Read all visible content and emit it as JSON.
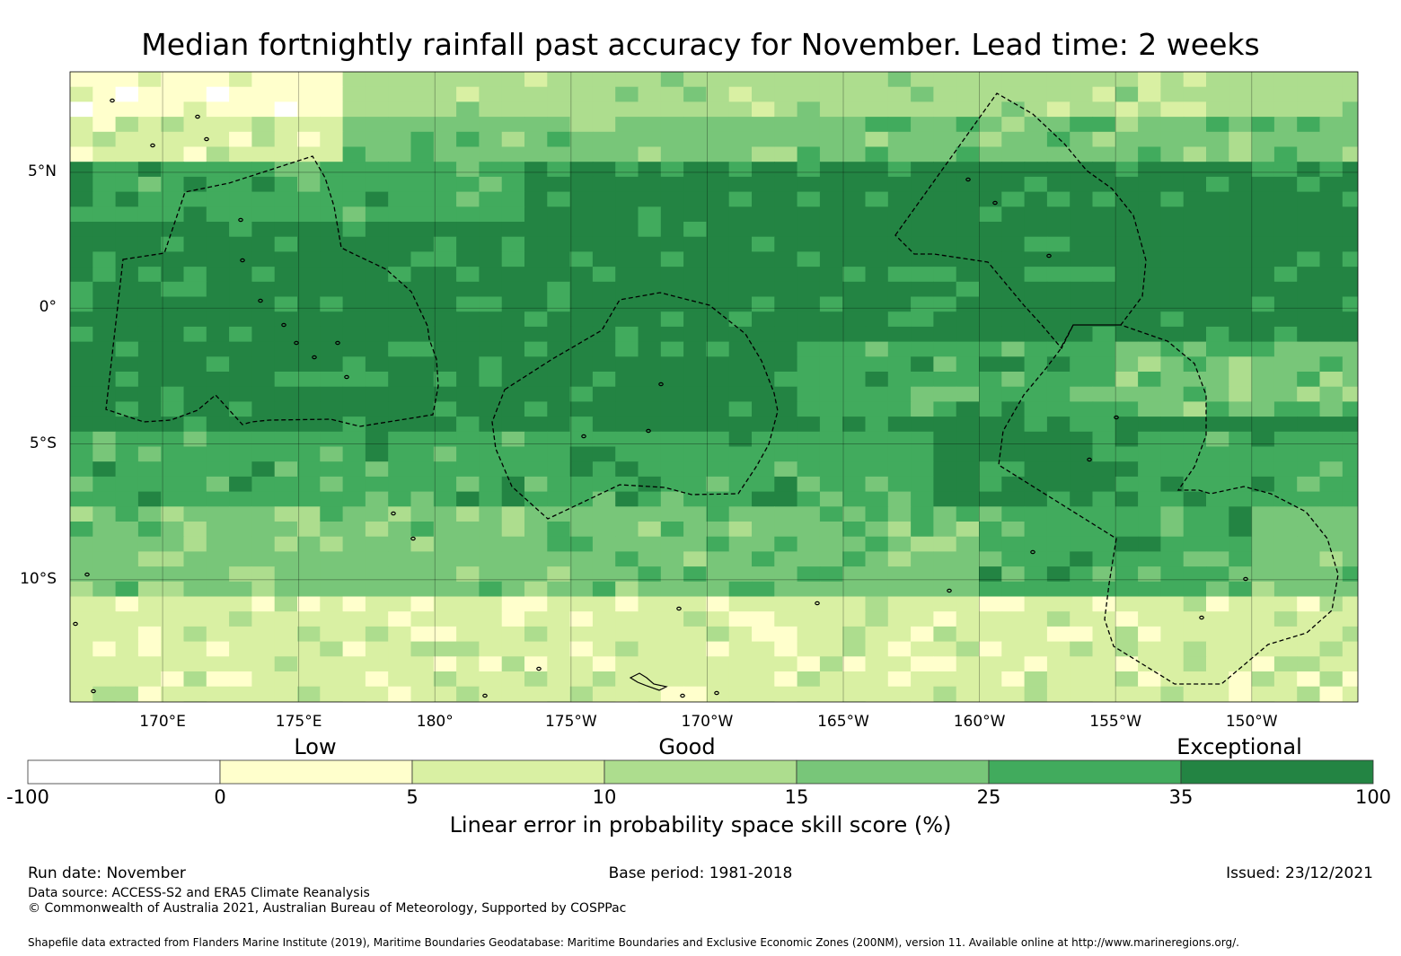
{
  "title": "Median fortnightly rainfall past accuracy for November. Lead time: 2 weeks",
  "map": {
    "lat_range": [
      -14.5,
      8.7
    ],
    "lon_range_east": [
      166.6,
      213.9
    ],
    "lat_labels": [
      {
        "lat": 5,
        "label": "5°N"
      },
      {
        "lat": 0,
        "label": "0°"
      },
      {
        "lat": -5,
        "label": "5°S"
      },
      {
        "lat": -10,
        "label": "10°S"
      }
    ],
    "lon_labels": [
      {
        "lon": 170,
        "label": "170°E"
      },
      {
        "lon": 175,
        "label": "175°E"
      },
      {
        "lon": 180,
        "label": "180°"
      },
      {
        "lon": 185,
        "label": "175°W"
      },
      {
        "lon": 190,
        "label": "170°W"
      },
      {
        "lon": 195,
        "label": "165°W"
      },
      {
        "lon": 200,
        "label": "160°W"
      },
      {
        "lon": 205,
        "label": "155°W"
      },
      {
        "lon": 210,
        "label": "150°W"
      }
    ],
    "skill_bands_by_latitude": [
      {
        "lat_from": 8.7,
        "lat_to": 7.0,
        "typical_class": 3
      },
      {
        "lat_from": 7.0,
        "lat_to": 5.5,
        "typical_class": 4
      },
      {
        "lat_from": 5.5,
        "lat_to": 3.0,
        "typical_class": 5
      },
      {
        "lat_from": 3.0,
        "lat_to": -4.5,
        "typical_class": 6
      },
      {
        "lat_from": -4.5,
        "lat_to": -7.5,
        "typical_class": 5
      },
      {
        "lat_from": -7.5,
        "lat_to": -10.5,
        "typical_class": 4
      },
      {
        "lat_from": -10.5,
        "lat_to": -14.5,
        "typical_class": 2
      }
    ]
  },
  "colorbar": {
    "categories": [
      "Low",
      "Good",
      "Exceptional"
    ],
    "bins": [
      {
        "from": "-100",
        "to": "0",
        "color": "#ffffff"
      },
      {
        "from": "0",
        "to": "5",
        "color": "#ffffcc"
      },
      {
        "from": "5",
        "to": "10",
        "color": "#d9f0a3"
      },
      {
        "from": "10",
        "to": "15",
        "color": "#addd8e"
      },
      {
        "from": "15",
        "to": "25",
        "color": "#78c679"
      },
      {
        "from": "25",
        "to": "35",
        "color": "#41ab5d"
      },
      {
        "from": "35",
        "to": "100",
        "color": "#238443"
      }
    ],
    "ticks": [
      "-100",
      "0",
      "5",
      "10",
      "15",
      "25",
      "35",
      "100"
    ],
    "label": "Linear error in probability space skill score (%)"
  },
  "footer": {
    "run_date": "Run date: November",
    "base_period": "Base period: 1981-2018",
    "issued": "Issued: 23/12/2021",
    "data_source": "Data source: ACCESS-S2 and ERA5 Climate Reanalysis",
    "copyright": "© Commonwealth of Australia 2021, Australian Bureau of Meteorology, Supported by COSPPac",
    "shapefile_note": "Shapefile data extracted from Flanders Marine Institute (2019), Maritime Boundaries Geodatabase: Maritime Boundaries and Exclusive Economic Zones (200NM), version 11. Available online at http://www.marineregions.org/."
  }
}
